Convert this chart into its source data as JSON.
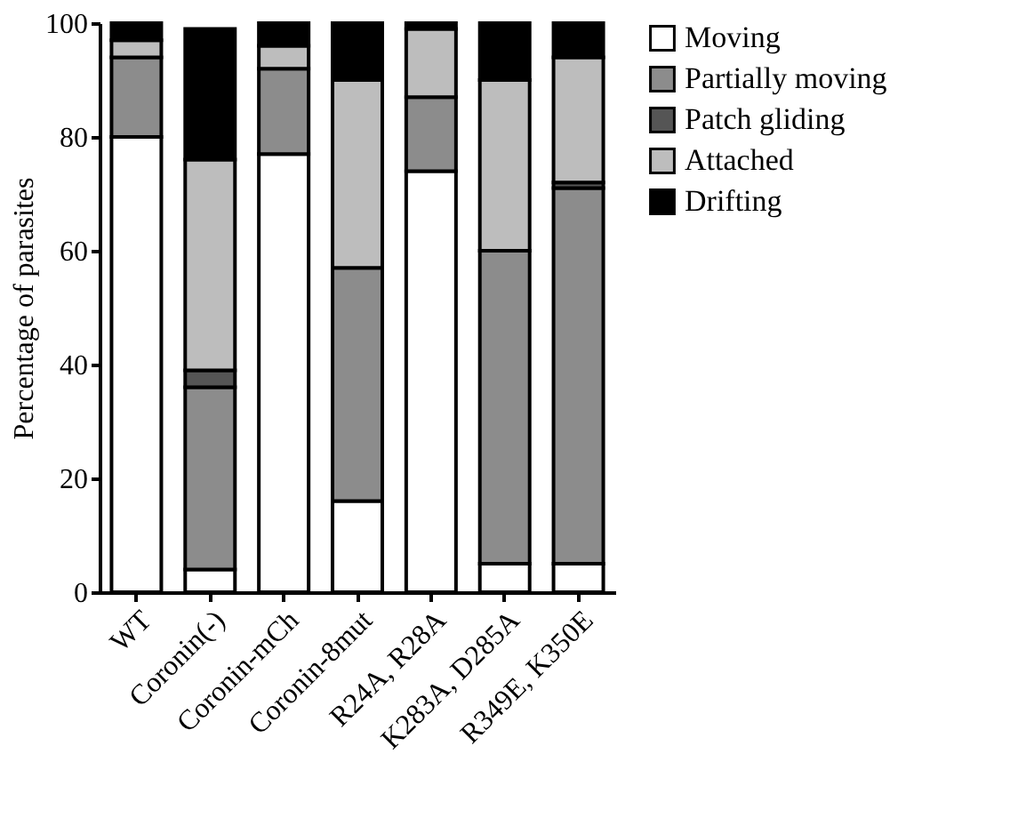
{
  "chart_data": {
    "type": "bar",
    "stacked": true,
    "ylabel": "Percentage of parasites",
    "categories": [
      "WT",
      "Coronin(-)",
      "Coronin-mCh",
      "Coronin-8mut",
      "R24A, R28A",
      "K283A, D285A",
      "R349E, K350E"
    ],
    "series": [
      {
        "name": "Moving",
        "color": "#ffffff",
        "values": [
          80,
          4,
          77,
          16,
          74,
          5,
          5
        ]
      },
      {
        "name": "Partially moving",
        "color": "#8c8c8c",
        "values": [
          14,
          32,
          15,
          41,
          13,
          55,
          66
        ]
      },
      {
        "name": "Patch gliding",
        "color": "#555555",
        "values": [
          null,
          3,
          null,
          null,
          null,
          null,
          1
        ]
      },
      {
        "name": "Attached",
        "color": "#bdbdbd",
        "values": [
          3,
          37,
          4,
          33,
          12,
          30,
          22
        ]
      },
      {
        "name": "Drifting",
        "color": "#000000",
        "values": [
          3,
          23,
          4,
          10,
          1,
          10,
          6
        ]
      }
    ],
    "ylim": [
      0,
      100
    ],
    "yticks": [
      0,
      20,
      40,
      60,
      80,
      100
    ],
    "grid": false,
    "legend": "top right"
  }
}
